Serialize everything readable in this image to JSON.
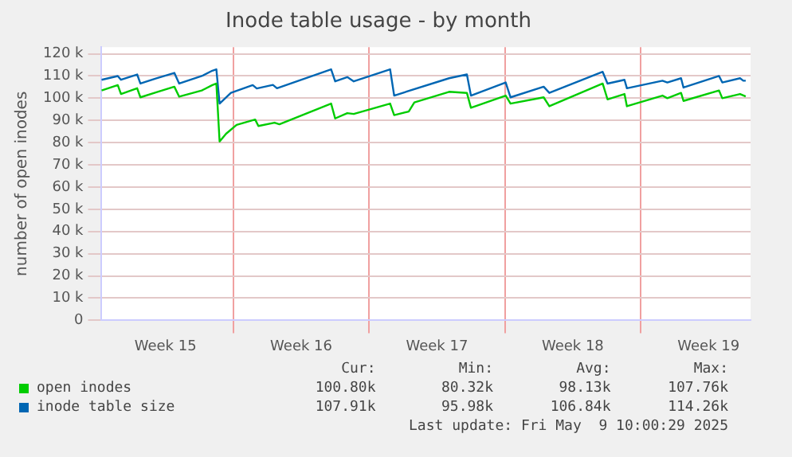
{
  "chart_data": {
    "type": "line",
    "title": "Inode table usage - by month",
    "ylabel": "number of open inodes",
    "xlim": [
      "2025-04-06T04:00",
      "2025-05-09T16:00"
    ],
    "xticks": [
      {
        "value": "2025-04-09T12:00",
        "label": "Week 15"
      },
      {
        "value": "2025-04-13T00:00",
        "label": null
      },
      {
        "value": "2025-04-16T12:00",
        "label": "Week 16"
      },
      {
        "value": "2025-04-20T00:00",
        "label": null
      },
      {
        "value": "2025-04-23T12:00",
        "label": "Week 17"
      },
      {
        "value": "2025-04-27T00:00",
        "label": null
      },
      {
        "value": "2025-04-30T12:00",
        "label": "Week 18"
      },
      {
        "value": "2025-05-04T00:00",
        "label": null
      },
      {
        "value": "2025-05-07T12:00",
        "label": "Week 19"
      }
    ],
    "ylim": [
      0,
      123000
    ],
    "yticks": [
      0,
      {
        "value": 10000,
        "label": "10 k"
      },
      {
        "value": 20000,
        "label": "20 k"
      },
      {
        "value": 30000,
        "label": "30 k"
      },
      {
        "value": 40000,
        "label": "40 k"
      },
      {
        "value": 50000,
        "label": "50 k"
      },
      {
        "value": 60000,
        "label": "60 k"
      },
      {
        "value": 70000,
        "label": "70 k"
      },
      {
        "value": 80000,
        "label": "80 k"
      },
      {
        "value": 90000,
        "label": "90 k"
      },
      {
        "value": 100000,
        "label": "100 k"
      },
      {
        "value": 110000,
        "label": "110 k"
      },
      {
        "value": 120000,
        "label": "120 k"
      }
    ],
    "grid": true,
    "legend": "bottom",
    "marker": "none",
    "line_style": "solid",
    "series": [
      {
        "name": "open inodes",
        "color": "#00cc00",
        "x": [
          "2025-04-06T05:00",
          "2025-04-07T01:00",
          "2025-04-07T05:00",
          "2025-04-08T01:00",
          "2025-04-08T05:00",
          "2025-04-09T00:00",
          "2025-04-09T23:00",
          "2025-04-10T05:00",
          "2025-04-11T09:00",
          "2025-04-11T22:00",
          "2025-04-12T03:00",
          "2025-04-12T07:00",
          "2025-04-12T15:00",
          "2025-04-13T04:00",
          "2025-04-14T03:00",
          "2025-04-14T07:00",
          "2025-04-15T03:00",
          "2025-04-15T09:00",
          "2025-04-18T01:00",
          "2025-04-18T06:00",
          "2025-04-18T21:00",
          "2025-04-19T05:00",
          "2025-04-21T02:00",
          "2025-04-21T07:00",
          "2025-04-22T01:00",
          "2025-04-22T08:00",
          "2025-04-24T03:00",
          "2025-04-25T01:00",
          "2025-04-25T06:00",
          "2025-04-27T01:00",
          "2025-04-27T07:00",
          "2025-04-29T00:00",
          "2025-04-29T07:00",
          "2025-05-02T01:00",
          "2025-05-02T07:00",
          "2025-05-03T04:00",
          "2025-05-03T07:00",
          "2025-05-05T03:00",
          "2025-05-05T09:00",
          "2025-05-06T02:00",
          "2025-05-06T05:00",
          "2025-05-08T01:00",
          "2025-05-08T05:00",
          "2025-05-09T03:00",
          "2025-05-09T10:00"
        ],
        "values": [
          103500,
          105900,
          101900,
          104500,
          100400,
          102600,
          105200,
          100700,
          103500,
          105900,
          106600,
          80500,
          84000,
          88000,
          90400,
          87500,
          89000,
          88300,
          97600,
          90900,
          93300,
          92900,
          97600,
          92400,
          94000,
          98100,
          102900,
          102400,
          95700,
          101200,
          97600,
          100400,
          96400,
          106600,
          99500,
          101900,
          96400,
          101200,
          100000,
          102400,
          98800,
          103500,
          100000,
          101900,
          100800
        ]
      },
      {
        "name": "inode table size",
        "color": "#0066b3",
        "x": [
          "2025-04-06T05:00",
          "2025-04-07T01:00",
          "2025-04-07T05:00",
          "2025-04-08T01:00",
          "2025-04-08T05:00",
          "2025-04-09T00:00",
          "2025-04-09T23:00",
          "2025-04-10T05:00",
          "2025-04-11T09:00",
          "2025-04-11T22:00",
          "2025-04-12T03:00",
          "2025-04-12T07:00",
          "2025-04-12T21:00",
          "2025-04-14T00:00",
          "2025-04-14T05:00",
          "2025-04-15T01:00",
          "2025-04-15T06:00",
          "2025-04-18T01:00",
          "2025-04-18T06:00",
          "2025-04-18T21:00",
          "2025-04-19T05:00",
          "2025-04-21T02:00",
          "2025-04-21T07:00",
          "2025-04-24T03:00",
          "2025-04-25T01:00",
          "2025-04-25T06:00",
          "2025-04-27T01:00",
          "2025-04-27T07:00",
          "2025-04-29T00:00",
          "2025-04-29T07:00",
          "2025-05-02T01:00",
          "2025-05-02T07:00",
          "2025-05-03T04:00",
          "2025-05-03T07:00",
          "2025-05-05T03:00",
          "2025-05-05T09:00",
          "2025-05-06T02:00",
          "2025-05-06T05:00",
          "2025-05-08T01:00",
          "2025-05-08T05:00",
          "2025-05-09T03:00",
          "2025-05-09T07:00",
          "2025-05-09T10:00"
        ],
        "values": [
          108300,
          110000,
          108300,
          110700,
          106600,
          108900,
          111400,
          106600,
          110000,
          112400,
          113000,
          97600,
          102400,
          105900,
          104400,
          106000,
          104500,
          113000,
          107600,
          109500,
          107600,
          113000,
          101200,
          109000,
          110700,
          101200,
          107100,
          100400,
          105200,
          102400,
          111900,
          106600,
          108300,
          104500,
          107900,
          107100,
          109000,
          104800,
          110000,
          107100,
          109000,
          107900,
          107900
        ]
      }
    ],
    "annotations": [
      "Cur:",
      "Min:",
      "Avg:",
      "Max:",
      "100.80k",
      "80.32k",
      "98.13k",
      "107.76k",
      "107.91k",
      "95.98k",
      "106.84k",
      "114.26k",
      "Last update: Fri May  9 10:00:29 2025"
    ]
  }
}
